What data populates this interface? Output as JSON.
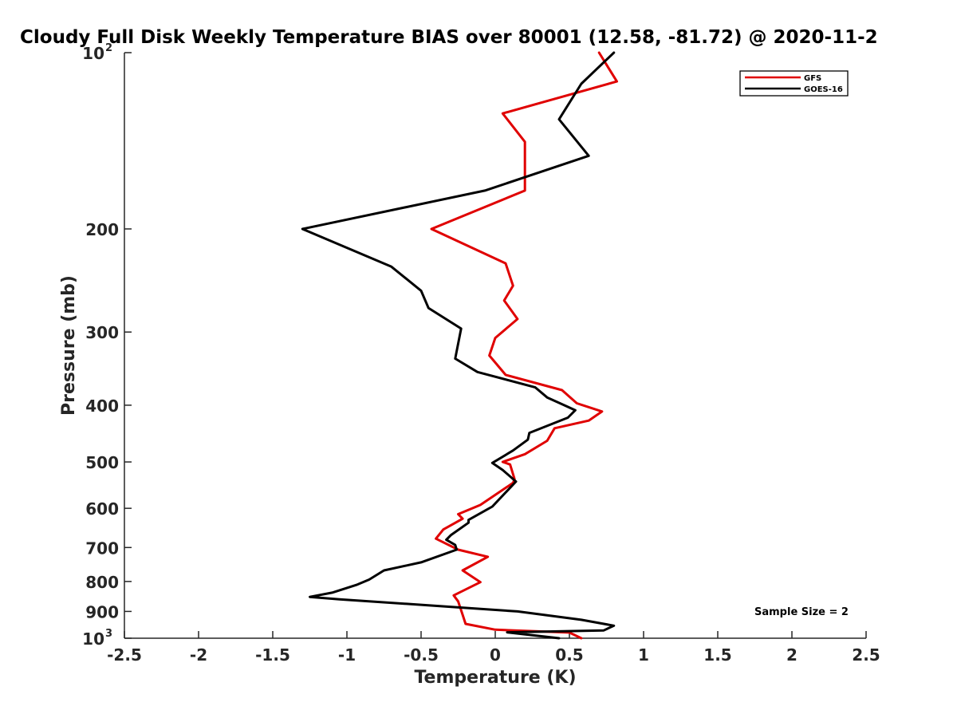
{
  "chart_data": {
    "type": "line",
    "title": "Cloudy Full Disk Weekly Temperature BIAS over 80001 (12.58, -81.72) @ 2020-11-2",
    "xlabel": "Temperature (K)",
    "ylabel": "Pressure (mb)",
    "xlim": [
      -2.5,
      2.5
    ],
    "ylim": [
      100,
      1000
    ],
    "y_scale": "log",
    "y_reversed": true,
    "grid": false,
    "legend_position": "top-right",
    "x_ticks": [
      {
        "value": -2.5,
        "label": "-2.5"
      },
      {
        "value": -2,
        "label": "-2"
      },
      {
        "value": -1.5,
        "label": "-1.5"
      },
      {
        "value": -1,
        "label": "-1"
      },
      {
        "value": -0.5,
        "label": "-0.5"
      },
      {
        "value": 0,
        "label": "0"
      },
      {
        "value": 0.5,
        "label": "0.5"
      },
      {
        "value": 1,
        "label": "1"
      },
      {
        "value": 1.5,
        "label": "1.5"
      },
      {
        "value": 2,
        "label": "2"
      },
      {
        "value": 2.5,
        "label": "2.5"
      }
    ],
    "y_ticks": [
      {
        "value": 100,
        "label": "10",
        "sup": "2"
      },
      {
        "value": 200,
        "label": "200"
      },
      {
        "value": 300,
        "label": "300"
      },
      {
        "value": 400,
        "label": "400"
      },
      {
        "value": 500,
        "label": "500"
      },
      {
        "value": 600,
        "label": "600"
      },
      {
        "value": 700,
        "label": "700"
      },
      {
        "value": 800,
        "label": "800"
      },
      {
        "value": 900,
        "label": "900"
      },
      {
        "value": 1000,
        "label": "10",
        "sup": "3"
      }
    ],
    "series": [
      {
        "name": "GFS",
        "color": "#e00000",
        "points": [
          {
            "x": 0.7,
            "y": 100
          },
          {
            "x": 0.82,
            "y": 112
          },
          {
            "x": 0.05,
            "y": 127
          },
          {
            "x": 0.2,
            "y": 142
          },
          {
            "x": 0.2,
            "y": 172
          },
          {
            "x": -0.43,
            "y": 200
          },
          {
            "x": 0.07,
            "y": 229
          },
          {
            "x": 0.12,
            "y": 250
          },
          {
            "x": 0.06,
            "y": 265
          },
          {
            "x": 0.15,
            "y": 285
          },
          {
            "x": 0.0,
            "y": 307
          },
          {
            "x": -0.04,
            "y": 329
          },
          {
            "x": 0.07,
            "y": 355
          },
          {
            "x": 0.45,
            "y": 377
          },
          {
            "x": 0.55,
            "y": 397
          },
          {
            "x": 0.72,
            "y": 410
          },
          {
            "x": 0.63,
            "y": 425
          },
          {
            "x": 0.4,
            "y": 438
          },
          {
            "x": 0.35,
            "y": 460
          },
          {
            "x": 0.2,
            "y": 485
          },
          {
            "x": 0.05,
            "y": 500
          },
          {
            "x": 0.1,
            "y": 505
          },
          {
            "x": 0.13,
            "y": 535
          },
          {
            "x": 0.12,
            "y": 543
          },
          {
            "x": -0.1,
            "y": 592
          },
          {
            "x": -0.25,
            "y": 614
          },
          {
            "x": -0.22,
            "y": 625
          },
          {
            "x": -0.35,
            "y": 652
          },
          {
            "x": -0.4,
            "y": 676
          },
          {
            "x": -0.25,
            "y": 706
          },
          {
            "x": -0.05,
            "y": 726
          },
          {
            "x": -0.22,
            "y": 766
          },
          {
            "x": -0.1,
            "y": 802
          },
          {
            "x": -0.28,
            "y": 845
          },
          {
            "x": -0.25,
            "y": 865
          },
          {
            "x": -0.22,
            "y": 912
          },
          {
            "x": -0.2,
            "y": 945
          },
          {
            "x": 0.0,
            "y": 967
          },
          {
            "x": 0.5,
            "y": 978
          },
          {
            "x": 0.58,
            "y": 1000
          }
        ]
      },
      {
        "name": "GOES-16",
        "color": "#000000",
        "points": [
          {
            "x": 0.8,
            "y": 100
          },
          {
            "x": 0.58,
            "y": 113
          },
          {
            "x": 0.43,
            "y": 130
          },
          {
            "x": 0.63,
            "y": 150
          },
          {
            "x": -0.07,
            "y": 172
          },
          {
            "x": -1.3,
            "y": 200
          },
          {
            "x": -0.7,
            "y": 232
          },
          {
            "x": -0.5,
            "y": 255
          },
          {
            "x": -0.45,
            "y": 273
          },
          {
            "x": -0.23,
            "y": 296
          },
          {
            "x": -0.27,
            "y": 333
          },
          {
            "x": -0.12,
            "y": 351
          },
          {
            "x": 0.27,
            "y": 373
          },
          {
            "x": 0.35,
            "y": 388
          },
          {
            "x": 0.54,
            "y": 408
          },
          {
            "x": 0.49,
            "y": 420
          },
          {
            "x": 0.23,
            "y": 446
          },
          {
            "x": 0.22,
            "y": 458
          },
          {
            "x": 0.12,
            "y": 478
          },
          {
            "x": -0.02,
            "y": 502
          },
          {
            "x": 0.05,
            "y": 516
          },
          {
            "x": 0.14,
            "y": 540
          },
          {
            "x": -0.02,
            "y": 596
          },
          {
            "x": -0.18,
            "y": 628
          },
          {
            "x": -0.18,
            "y": 635
          },
          {
            "x": -0.3,
            "y": 667
          },
          {
            "x": -0.33,
            "y": 679
          },
          {
            "x": -0.27,
            "y": 693
          },
          {
            "x": -0.26,
            "y": 706
          },
          {
            "x": -0.5,
            "y": 742
          },
          {
            "x": -0.75,
            "y": 766
          },
          {
            "x": -0.85,
            "y": 794
          },
          {
            "x": -0.93,
            "y": 810
          },
          {
            "x": -1.1,
            "y": 836
          },
          {
            "x": -1.25,
            "y": 850
          },
          {
            "x": -1.05,
            "y": 858
          },
          {
            "x": 0.15,
            "y": 900
          },
          {
            "x": 0.58,
            "y": 930
          },
          {
            "x": 0.8,
            "y": 952
          },
          {
            "x": 0.73,
            "y": 970
          },
          {
            "x": 0.08,
            "y": 977
          },
          {
            "x": 0.43,
            "y": 1000
          }
        ]
      }
    ],
    "annotation": "Sample Size = 2"
  }
}
